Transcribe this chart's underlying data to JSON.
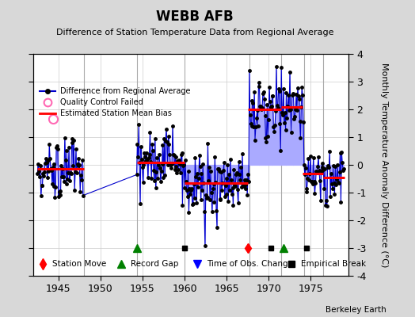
{
  "title": "WEBB AFB",
  "subtitle": "Difference of Station Temperature Data from Regional Average",
  "ylabel": "Monthly Temperature Anomaly Difference (°C)",
  "xlabel_years": [
    1945,
    1950,
    1955,
    1960,
    1965,
    1970,
    1975
  ],
  "ylim": [
    -4,
    4
  ],
  "xlim": [
    1942.0,
    1979.5
  ],
  "background_color": "#d8d8d8",
  "plot_bg_color": "#ffffff",
  "watermark": "Berkeley Earth",
  "segments": [
    {
      "x_start": 1942.5,
      "x_end": 1948.0,
      "bias": -0.15
    },
    {
      "x_start": 1954.3,
      "x_end": 1960.0,
      "bias": 0.1
    },
    {
      "x_start": 1960.0,
      "x_end": 1967.5,
      "bias": -0.65
    },
    {
      "x_start": 1967.5,
      "x_end": 1971.5,
      "bias": 2.0
    },
    {
      "x_start": 1971.5,
      "x_end": 1974.0,
      "bias": 2.1
    },
    {
      "x_start": 1974.0,
      "x_end": 1976.5,
      "bias": -0.3
    },
    {
      "x_start": 1976.5,
      "x_end": 1979.0,
      "bias": -0.45
    }
  ],
  "data_ranges": [
    {
      "x_start": 1942.5,
      "x_end": 1948.0,
      "bias": -0.15,
      "std": 0.55
    },
    {
      "x_start": 1954.3,
      "x_end": 1960.0,
      "bias": 0.1,
      "std": 0.55
    },
    {
      "x_start": 1960.0,
      "x_end": 1967.7,
      "bias": -0.65,
      "std": 0.65
    },
    {
      "x_start": 1967.7,
      "x_end": 1971.5,
      "bias": 2.0,
      "std": 0.7
    },
    {
      "x_start": 1971.5,
      "x_end": 1974.2,
      "bias": 2.1,
      "std": 0.55
    },
    {
      "x_start": 1974.2,
      "x_end": 1976.5,
      "bias": -0.3,
      "std": 0.5
    },
    {
      "x_start": 1976.5,
      "x_end": 1979.0,
      "bias": -0.45,
      "std": 0.55
    }
  ],
  "station_moves": [
    1967.5
  ],
  "record_gaps": [
    1954.3,
    1971.8
  ],
  "obs_changes": [],
  "empirical_breaks": [
    1960.0,
    1970.3,
    1974.5
  ],
  "qc_failed_x": 1944.4,
  "qc_failed_y": 1.65,
  "line_color": "#0000cc",
  "stem_color": "#aaaaff",
  "dot_color": "#000000",
  "bias_color": "#ff0000",
  "qc_color": "#ff69b4",
  "grid_color": "#cccccc",
  "vertical_line_color": "#aaaaaa"
}
